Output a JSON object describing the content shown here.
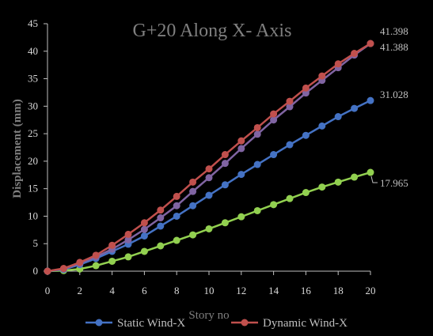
{
  "chart_data": {
    "type": "line",
    "title": "G+20 Along X- Axis",
    "xlabel": "Story no",
    "ylabel": "Displacement (mm)",
    "xlim": [
      0,
      20
    ],
    "ylim": [
      0,
      45
    ],
    "xticks": [
      "0",
      "2",
      "4",
      "6",
      "8",
      "10",
      "12",
      "14",
      "16",
      "18",
      "20"
    ],
    "yticks": [
      "0",
      "5",
      "10",
      "15",
      "20",
      "25",
      "30",
      "35",
      "40",
      "45"
    ],
    "grid": false,
    "legend_position": "bottom",
    "x": [
      0,
      1,
      2,
      3,
      4,
      5,
      6,
      7,
      8,
      9,
      10,
      11,
      12,
      13,
      14,
      15,
      16,
      17,
      18,
      19,
      20
    ],
    "series": [
      {
        "name": "",
        "color": "#92d050",
        "values": [
          0,
          0.1,
          0.4,
          1.0,
          1.8,
          2.6,
          3.6,
          4.6,
          5.6,
          6.6,
          7.7,
          8.8,
          9.9,
          11.0,
          12.1,
          13.2,
          14.3,
          15.3,
          16.2,
          17.1,
          17.965
        ],
        "end_label": "17.965"
      },
      {
        "name": "Static Wind-X",
        "color": "#4472c4",
        "values": [
          0,
          0.3,
          1.2,
          2.3,
          3.6,
          4.9,
          6.4,
          8.2,
          10.0,
          11.9,
          13.8,
          15.7,
          17.6,
          19.4,
          21.2,
          23.0,
          24.7,
          26.4,
          28.1,
          29.6,
          31.028
        ],
        "end_label": "31.028"
      },
      {
        "name": "",
        "color": "#8064a2",
        "values": [
          0,
          0.4,
          1.4,
          2.6,
          4.0,
          5.7,
          7.6,
          9.7,
          11.9,
          14.5,
          17.0,
          19.6,
          22.3,
          24.9,
          27.5,
          29.9,
          32.4,
          34.7,
          37.0,
          39.3,
          41.388
        ],
        "end_label": "41.388"
      },
      {
        "name": "Dynamic Wind-X",
        "color": "#c0504d",
        "values": [
          0,
          0.5,
          1.6,
          2.9,
          4.7,
          6.7,
          8.8,
          11.1,
          13.6,
          16.2,
          18.6,
          21.2,
          23.7,
          26.1,
          28.6,
          30.9,
          33.3,
          35.5,
          37.7,
          39.6,
          41.398
        ],
        "end_label": "41.398"
      }
    ]
  }
}
